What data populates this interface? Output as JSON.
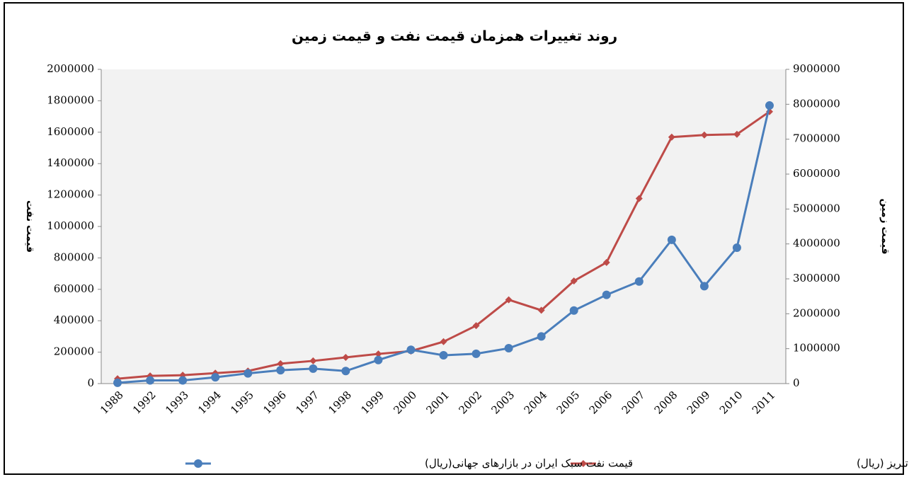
{
  "chart_data": {
    "type": "line",
    "title": "روند تغییرات همزمان قیمت نفت و قیمت زمین",
    "y_label": "قیمت نفت",
    "y2_label": "قیمت زمین",
    "categories": [
      "1988",
      "1992",
      "1993",
      "1994",
      "1995",
      "1996",
      "1997",
      "1998",
      "1999",
      "2000",
      "2001",
      "2002",
      "2003",
      "2004",
      "2005",
      "2006",
      "2007",
      "2008",
      "2009",
      "2010",
      "2011"
    ],
    "ylim": [
      0,
      2000000
    ],
    "yticks": [
      0,
      200000,
      400000,
      600000,
      800000,
      1000000,
      1200000,
      1400000,
      1600000,
      1800000,
      2000000
    ],
    "y2lim": [
      0,
      9000000
    ],
    "y2ticks": [
      0,
      1000000,
      2000000,
      3000000,
      4000000,
      5000000,
      6000000,
      7000000,
      8000000,
      9000000
    ],
    "series": [
      {
        "name": "متوسط قیمت یک مترمربع زمین در کلان شهر تبریز (ریال)",
        "color": "#be4b48",
        "marker": "diamond",
        "axis": "y2",
        "values": [
          140000,
          220000,
          240000,
          300000,
          360000,
          570000,
          650000,
          750000,
          850000,
          930000,
          1200000,
          1660000,
          2400000,
          2100000,
          2940000,
          3470000,
          5300000,
          7060000,
          7120000,
          7140000,
          7790000
        ]
      },
      {
        "name": "قیمت نفت سبک ایران در بازارهای جهانی(ریال)",
        "color": "#4a7ebb",
        "marker": "circle",
        "values": [
          5000,
          20000,
          20000,
          40000,
          65000,
          85000,
          95000,
          80000,
          150000,
          215000,
          180000,
          190000,
          225000,
          300000,
          465000,
          565000,
          650000,
          915000,
          620000,
          865000,
          1770000
        ]
      }
    ]
  }
}
